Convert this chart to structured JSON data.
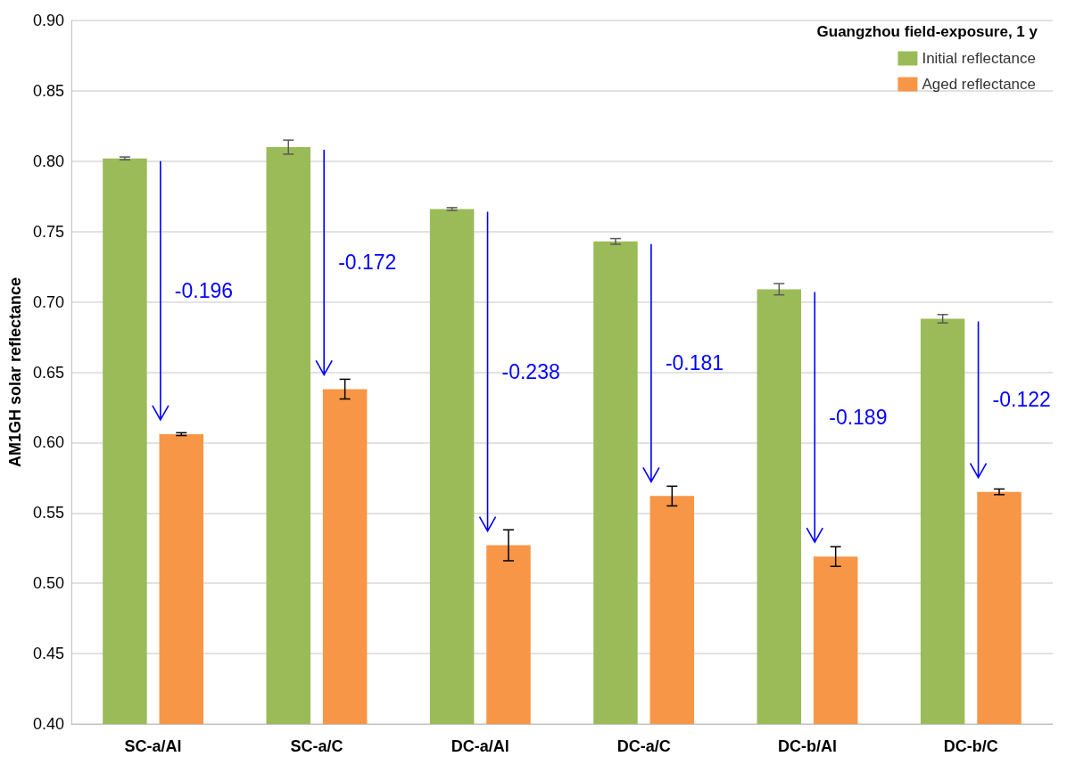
{
  "chart_data": {
    "type": "bar",
    "ylabel": "AM1GH solar reflectance",
    "legend_title": "Guangzhou field-exposure, 1 y",
    "categories": [
      "SC-a/Al",
      "SC-a/C",
      "DC-a/Al",
      "DC-a/C",
      "DC-b/Al",
      "DC-b/C"
    ],
    "series": [
      {
        "name": "Initial reflectance",
        "color": "#9bbb59",
        "values": [
          0.802,
          0.81,
          0.766,
          0.743,
          0.709,
          0.688
        ],
        "errors": [
          0.001,
          0.005,
          0.001,
          0.002,
          0.004,
          0.003
        ]
      },
      {
        "name": "Aged reflectance",
        "color": "#f79646",
        "values": [
          0.606,
          0.638,
          0.527,
          0.562,
          0.519,
          0.565
        ],
        "errors": [
          0.001,
          0.007,
          0.011,
          0.007,
          0.007,
          0.002
        ]
      }
    ],
    "ylim": [
      0.4,
      0.9
    ],
    "yticks": [
      {
        "value": 0.4,
        "label": "0.40"
      },
      {
        "value": 0.45,
        "label": "0.45"
      },
      {
        "value": 0.5,
        "label": "0.50"
      },
      {
        "value": 0.55,
        "label": "0.55"
      },
      {
        "value": 0.6,
        "label": "0.60"
      },
      {
        "value": 0.65,
        "label": "0.65"
      },
      {
        "value": 0.7,
        "label": "0.70"
      },
      {
        "value": 0.75,
        "label": "0.75"
      },
      {
        "value": 0.8,
        "label": "0.80"
      },
      {
        "value": 0.85,
        "label": "0.85"
      },
      {
        "value": 0.9,
        "label": "0.90"
      }
    ],
    "annotations": [
      "-0.196",
      "-0.172",
      "-0.238",
      "-0.181",
      "-0.189",
      "-0.122"
    ],
    "grid": "y",
    "legend": "top right"
  }
}
